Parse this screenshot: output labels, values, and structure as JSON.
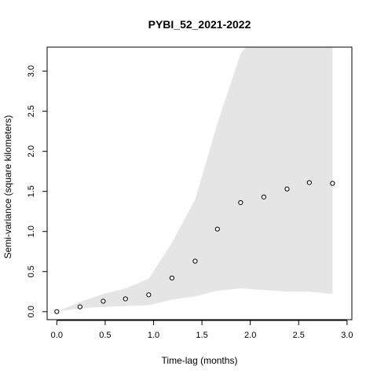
{
  "chart_data": {
    "type": "scatter",
    "title": "PYBI_52_2021-2022",
    "xlabel": "Time-lag (months)",
    "ylabel": "Semi-variance (square kilometers)",
    "xlim": [
      -0.1,
      3.05
    ],
    "ylim": [
      -0.1,
      3.3
    ],
    "x_ticks": [
      0.0,
      0.5,
      1.0,
      1.5,
      2.0,
      2.5,
      3.0
    ],
    "x_tick_labels": [
      "0.0",
      "0.5",
      "1.0",
      "1.5",
      "2.0",
      "2.5",
      "3.0"
    ],
    "y_ticks": [
      0.0,
      0.5,
      1.0,
      1.5,
      2.0,
      2.5,
      3.0
    ],
    "y_tick_labels": [
      "0.0",
      "0.5",
      "1.0",
      "1.5",
      "2.0",
      "2.5",
      "3.0"
    ],
    "grid": false,
    "series": [
      {
        "points": [
          {
            "x": 0.0,
            "y": 0.0
          },
          {
            "x": 0.24,
            "y": 0.06
          },
          {
            "x": 0.48,
            "y": 0.13
          },
          {
            "x": 0.71,
            "y": 0.16
          },
          {
            "x": 0.95,
            "y": 0.21
          },
          {
            "x": 1.19,
            "y": 0.42
          },
          {
            "x": 1.43,
            "y": 0.63
          },
          {
            "x": 1.66,
            "y": 1.03
          },
          {
            "x": 1.9,
            "y": 1.36
          },
          {
            "x": 2.14,
            "y": 1.43
          },
          {
            "x": 2.38,
            "y": 1.53
          },
          {
            "x": 2.61,
            "y": 1.61
          },
          {
            "x": 2.85,
            "y": 1.6
          }
        ]
      }
    ],
    "envelope": {
      "color": "#e5e5e5",
      "x": [
        0.0,
        0.24,
        0.48,
        0.71,
        0.95,
        1.19,
        1.43,
        1.66,
        1.9,
        2.14,
        2.38,
        2.61,
        2.85
      ],
      "lower": [
        0.0,
        0.04,
        0.06,
        0.07,
        0.08,
        0.15,
        0.19,
        0.26,
        0.29,
        0.27,
        0.25,
        0.25,
        0.22
      ],
      "upper": [
        0.0,
        0.12,
        0.22,
        0.29,
        0.41,
        0.86,
        1.4,
        2.35,
        3.22,
        3.55,
        3.7,
        3.8,
        3.9
      ]
    }
  }
}
